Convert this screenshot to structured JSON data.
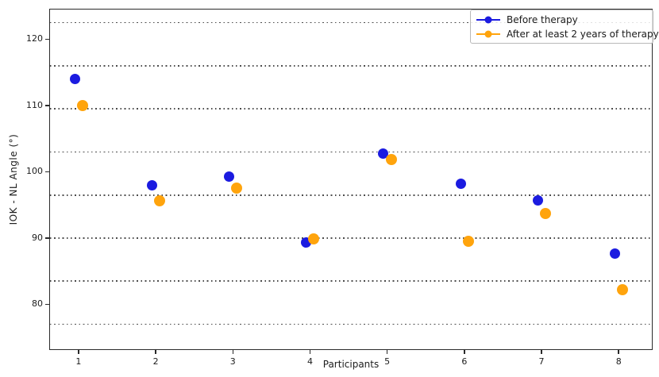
{
  "chart_data": {
    "type": "scatter",
    "title": "",
    "xlabel": "Participants",
    "ylabel": "IOK - NL Angle (°)",
    "categories": [
      1,
      2,
      3,
      4,
      5,
      6,
      7,
      8
    ],
    "series": [
      {
        "name": "Before therapy",
        "color": "#1b1be0",
        "marker": "circle",
        "marker_size_px": 13,
        "x_offset": -0.05,
        "values": [
          114.0,
          98.0,
          99.3,
          89.3,
          102.7,
          98.2,
          95.7,
          87.7
        ]
      },
      {
        "name": "After at least 2 years of therapy",
        "color": "#ffa40d",
        "marker": "circle",
        "marker_size_px": 14,
        "x_offset": 0.05,
        "values": [
          110.0,
          95.6,
          97.5,
          89.9,
          101.9,
          89.5,
          93.7,
          82.2
        ]
      }
    ],
    "x_ticks": [
      "1",
      "2",
      "3",
      "4",
      "5",
      "6",
      "7",
      "8"
    ],
    "y_ticks": [
      80,
      90,
      100,
      110,
      120
    ],
    "xlim": [
      0.62,
      8.44
    ],
    "ylim": [
      73.1,
      124.6
    ],
    "reference_lines": {
      "style": "dotted",
      "color": "#4c4c4c",
      "values": [
        77,
        83.5,
        90,
        96.5,
        103,
        109.5,
        116,
        122.5
      ]
    },
    "legend": {
      "position": "upper right",
      "entries": [
        "Before therapy",
        "After at least 2 years of therapy"
      ]
    },
    "grid": "horizontal dotted reference lines only",
    "axis_color": "#2a2a2a"
  }
}
